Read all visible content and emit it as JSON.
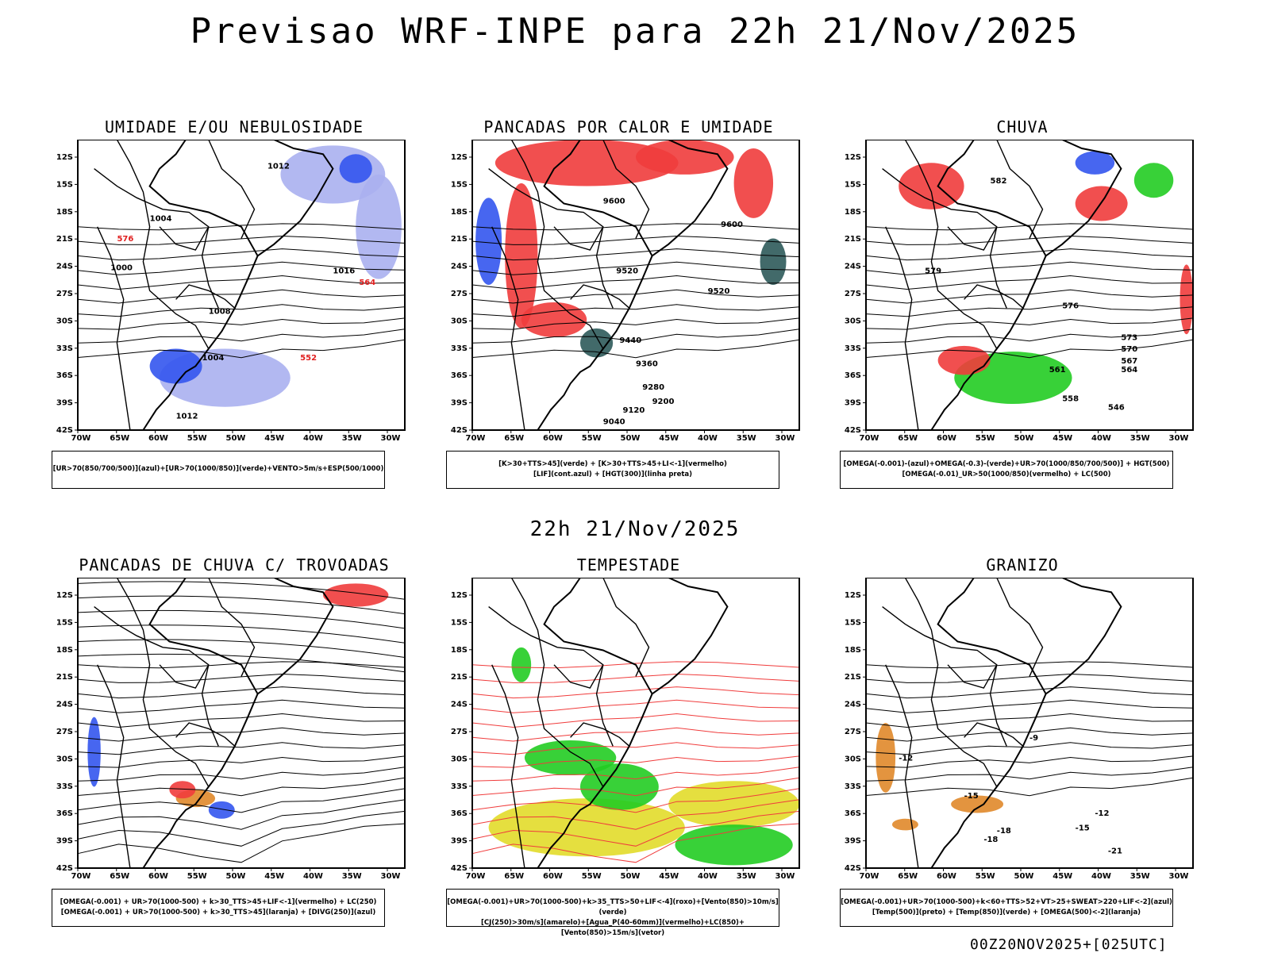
{
  "title": "Previsao WRF-INPE  para 22h 21/Nov/2025",
  "subtitle": "22h 21/Nov/2025",
  "footer": "00Z20NOV2025+[025UTC]",
  "lat_ticks": [
    "12S",
    "15S",
    "18S",
    "21S",
    "24S",
    "27S",
    "30S",
    "33S",
    "36S",
    "39S",
    "42S"
  ],
  "lon_ticks": [
    "70W",
    "65W",
    "60W",
    "55W",
    "50W",
    "45W",
    "40W",
    "35W",
    "30W"
  ],
  "panels": [
    {
      "title": "UMIDADE E/OU NEBULOSIDADE",
      "legend": [
        "[UR>70(850/700/500)](azul)+[UR>70(1000/850)](verde)+VENTO>5m/s+ESP(500/1000)"
      ],
      "labels": [
        "1004",
        "1008",
        "1012",
        "1016",
        "1000",
        "564",
        "576",
        "552",
        "1004",
        "1012"
      ]
    },
    {
      "title": "PANCADAS POR CALOR E UMIDADE",
      "legend": [
        "[K>30+TTS>45](verde) + [K>30+TTS>45+LI<-1](vermelho)",
        "[LIF](cont.azul) + [HGT(300)](linha preta)"
      ],
      "labels": [
        "9600",
        "9520",
        "9440",
        "9360",
        "9280",
        "9200",
        "9120",
        "9040",
        "9600",
        "9520"
      ]
    },
    {
      "title": "CHUVA",
      "legend": [
        "[OMEGA(-0.001)-(azul)+OMEGA(-0.3)-(verde)+UR>70(1000/850/700/500)] + HGT(500)",
        "[OMEGA(-0.01)_UR>50(1000/850)(vermelho) + LC(500)"
      ],
      "labels": [
        "582",
        "579",
        "576",
        "573",
        "570",
        "567",
        "564",
        "561",
        "558",
        "546"
      ]
    },
    {
      "title": "PANCADAS DE CHUVA C/ TROVOADAS",
      "legend": [
        "[OMEGA(-0.001) + UR>70(1000-500) + k>30_TTS>45+LIF<-1](vermelho) + LC(250)",
        "[OMEGA(-0.001) + UR>70(1000-500) + k>30_TTS>45](laranja) + [DIVG(250)](azul)"
      ],
      "labels": []
    },
    {
      "title": "TEMPESTADE",
      "legend": [
        "[OMEGA(-0.001)+UR>70(1000-500)+k>35_TTS>50+LIF<-4](roxo)+[Vento(850)>10m/s](verde)",
        "[CJ(250)>30m/s](amarelo)+[Agua_P(40-60mm)](vermelho)+LC(850)+[Vento(850)>15m/s](vetor)"
      ],
      "labels": []
    },
    {
      "title": "GRANIZO",
      "legend": [
        "[OMEGA(-0.001)+UR>70(1000-500)+k<60+TTS>52+VT>25+SWEAT>220+LIF<-2](azul)",
        "[Temp(500)](preto) + [Temp(850)](verde) + [OMEGA(500)<-2](laranja)"
      ],
      "labels": [
        "-12",
        "-15",
        "-18",
        "-21",
        "-9",
        "-12",
        "-15",
        "-18"
      ]
    }
  ],
  "colors": {
    "red": "#f03c3c",
    "green": "#22cc22",
    "blue": "#3355ee",
    "lavender": "#aab0f0",
    "teal": "#2e5a5a",
    "yellow": "#e2dc2a",
    "orange": "#e0882a"
  }
}
